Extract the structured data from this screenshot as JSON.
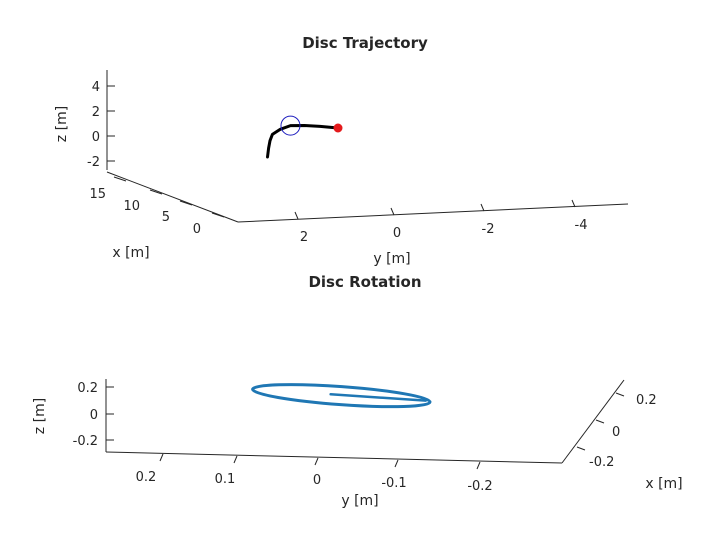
{
  "chart_data": [
    {
      "type": "line3d",
      "title": "Disc Trajectory",
      "xlabel": "x [m]",
      "ylabel": "y [m]",
      "zlabel": "z [m]",
      "x_ticks": [
        "15",
        "10",
        "5",
        "0"
      ],
      "y_ticks": [
        "2",
        "0",
        "-2",
        "-4"
      ],
      "z_ticks": [
        "4",
        "2",
        "0",
        "-2"
      ],
      "xlim": [
        -1,
        17
      ],
      "ylim": [
        -5,
        3
      ],
      "zlim": [
        -3,
        5
      ],
      "series": [
        {
          "color": "#000000",
          "points": [
            {
              "x": 0.0,
              "y": 0.0,
              "z": 0.0
            },
            {
              "x": 0.5,
              "y": 0.3,
              "z": 0.2
            },
            {
              "x": 1.0,
              "y": 0.55,
              "z": 0.35
            },
            {
              "x": 1.6,
              "y": 0.75,
              "z": 0.45
            },
            {
              "x": 2.3,
              "y": 0.85,
              "z": 0.3
            },
            {
              "x": 3.0,
              "y": 0.9,
              "z": 0.05
            },
            {
              "x": 3.6,
              "y": 0.85,
              "z": -0.3
            },
            {
              "x": 4.2,
              "y": 0.78,
              "z": -0.75
            },
            {
              "x": 4.8,
              "y": 0.7,
              "z": -1.3
            }
          ]
        }
      ],
      "markers": [
        {
          "name": "start",
          "color": "#e41a1c",
          "x": 0.0,
          "y": 0.0,
          "z": 0.0
        },
        {
          "name": "disc",
          "color": "#1f1fbf",
          "x": 1.6,
          "y": 0.75,
          "z": 0.45
        }
      ]
    },
    {
      "type": "line3d",
      "title": "Disc Rotation",
      "xlabel": "x [m]",
      "ylabel": "y [m]",
      "zlabel": "z [m]",
      "x_ticks": [
        "0.2",
        "0",
        "-0.2"
      ],
      "y_ticks": [
        "0.2",
        "0.1",
        "0",
        "-0.1",
        "-0.2"
      ],
      "z_ticks": [
        "0.2",
        "0",
        "-0.2"
      ],
      "xlim": [
        -0.25,
        0.25
      ],
      "ylim": [
        -0.25,
        0.25
      ],
      "zlim": [
        -0.25,
        0.25
      ],
      "series": [
        {
          "color": "#1f77b4",
          "name": "",
          "shape": "ellipse",
          "center_y": -0.03,
          "radius_y": 0.18,
          "radius_x": 0.2,
          "tilt_z": 0.08,
          "z_center": 0.17
        }
      ]
    }
  ]
}
